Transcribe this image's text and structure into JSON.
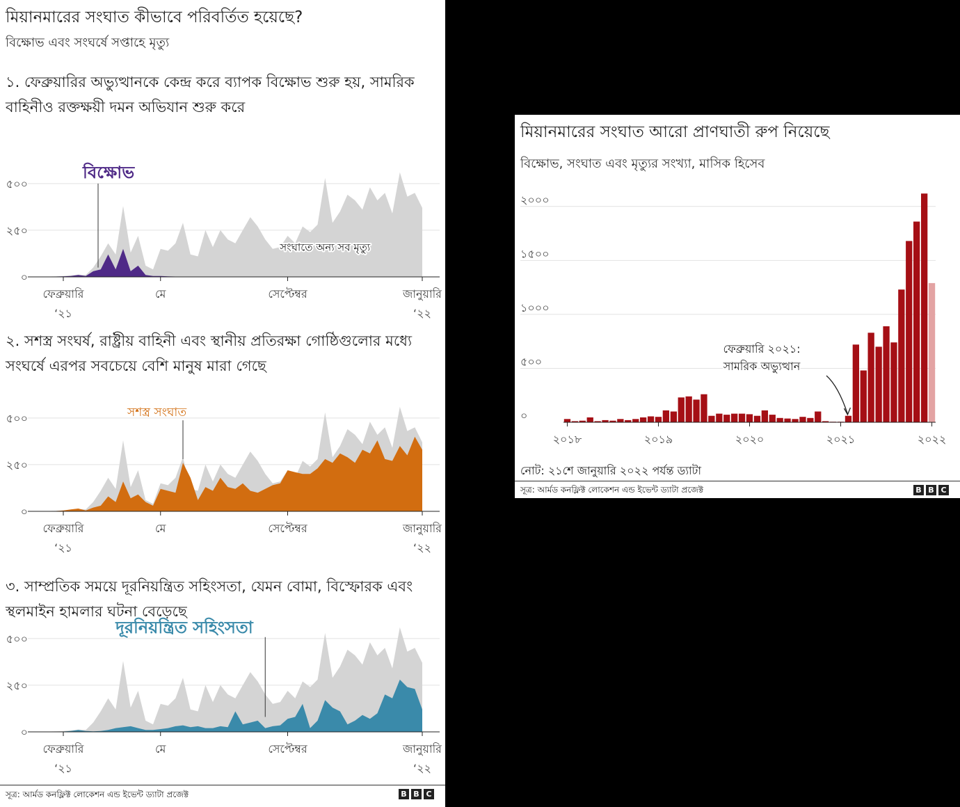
{
  "left": {
    "title": "মিয়ানমারের সংঘাত কীভাবে পরিবর্তিত হয়েছে?",
    "subtitle": "বিক্ষোভ এবং সংঘর্ষে সপ্তাহে মৃত্যু",
    "source": "সূত্র: আর্মড কনফ্লিক্ট লোকেশন এন্ড ইভেন্ট ড্যাটা প্রজেক্ট",
    "bbc": [
      "B",
      "B",
      "C"
    ]
  },
  "right": {
    "title": "মিয়ানমারের সংঘাত আরো প্রাণঘাতী রুপ নিয়েছে",
    "subtitle": "বিক্ষোভ, সংঘাত এবং মৃত্যুর সংখ্যা, মাসিক হিসেব",
    "note": "নোট: ২১শে জানুয়ারি ২০২২ পর্যন্ত ড্যাটা",
    "source": "সূত্র: আর্মড কনফ্লিক্ট লোকেশন এন্ড ইভেন্ট ড্যাটা প্রজেক্ট",
    "bbc": [
      "B",
      "B",
      "C"
    ]
  },
  "colors": {
    "total": "#d4d4d4",
    "protest": "#4f2a87",
    "armed": "#d26d10",
    "remote": "#3a8aaa",
    "bar": "#a50f15",
    "bar_partial": "#e3a3a3",
    "grid": "#e2e2e2",
    "axis": "#222222"
  },
  "chart_data": [
    {
      "type": "area",
      "section_title": "১. ফেব্রুয়ারির অভ্যুত্থানকে কেন্দ্র করে ব্যাপক বিক্ষোভ শুরু হয়, সামরিক বাহিনীও রক্তক্ষয়ী দমন অভিযান শুরু করে",
      "y_ticks": [
        0,
        250,
        500
      ],
      "y_tick_labels": [
        "০",
        "২৫০",
        "৫০০"
      ],
      "ylim": [
        0,
        600
      ],
      "x_ticks": [
        {
          "week": 4,
          "label": "ফেব্রুয়ারি",
          "sub": "‘২১"
        },
        {
          "week": 17,
          "label": "মে",
          "sub": ""
        },
        {
          "week": 34,
          "label": "সেপ্টেম্বর",
          "sub": ""
        },
        {
          "week": 52,
          "label": "জানুয়ারি",
          "sub": "‘২২"
        }
      ],
      "weeks": 53,
      "series": [
        {
          "name": "সংঘাতে অন্য সব মৃত্যু",
          "role": "total",
          "values": [
            0,
            0,
            2,
            3,
            5,
            8,
            12,
            10,
            50,
            110,
            180,
            120,
            380,
            130,
            220,
            60,
            40,
            150,
            140,
            180,
            290,
            120,
            110,
            250,
            160,
            250,
            200,
            180,
            250,
            320,
            270,
            200,
            150,
            160,
            220,
            180,
            270,
            240,
            280,
            530,
            290,
            350,
            440,
            410,
            360,
            480,
            410,
            450,
            340,
            560,
            430,
            450,
            370
          ]
        },
        {
          "name": "বিক্ষোভ",
          "role": "overlay",
          "color_key": "protest",
          "values": [
            0,
            0,
            0,
            2,
            3,
            5,
            10,
            5,
            30,
            40,
            120,
            40,
            150,
            30,
            60,
            10,
            5,
            5,
            3,
            2,
            2,
            1,
            1,
            1,
            0,
            0,
            0,
            0,
            0,
            0,
            0,
            0,
            0,
            0,
            0,
            0,
            0,
            0,
            0,
            0,
            0,
            0,
            0,
            0,
            0,
            0,
            0,
            0,
            0,
            0,
            0,
            0,
            0
          ]
        }
      ],
      "annotations": [
        {
          "text": "বিক্ষোভ",
          "week": 8,
          "y": 530,
          "color_key": "protest",
          "bold": true,
          "size": 24
        },
        {
          "text": "সংঘাতে অন্য সব মৃত্যু",
          "week": 39,
          "y": 140,
          "color_key": "axis",
          "halo": true,
          "size": 15
        }
      ]
    },
    {
      "type": "area",
      "section_title": "২. সশস্ত্র সংঘর্ষ, রাষ্ট্রীয় বাহিনী এবং স্থানীয় প্রতিরক্ষা গোষ্ঠিগুলোর মধ্যে সংঘর্ষে এরপর সবচেয়ে বেশি মানুষ মারা গেছে",
      "y_ticks": [
        0,
        250,
        500
      ],
      "y_tick_labels": [
        "০",
        "২৫০",
        "৫০০"
      ],
      "ylim": [
        0,
        600
      ],
      "x_ticks": [
        {
          "week": 4,
          "label": "ফেব্রুয়ারি",
          "sub": "‘২১"
        },
        {
          "week": 17,
          "label": "মে",
          "sub": ""
        },
        {
          "week": 34,
          "label": "সেপ্টেম্বর",
          "sub": ""
        },
        {
          "week": 52,
          "label": "জানুয়ারি",
          "sub": "‘২২"
        }
      ],
      "weeks": 53,
      "series": [
        {
          "name": "",
          "role": "total",
          "values": [
            0,
            0,
            2,
            3,
            5,
            8,
            12,
            10,
            50,
            110,
            180,
            120,
            380,
            130,
            220,
            60,
            40,
            150,
            140,
            180,
            290,
            120,
            110,
            250,
            160,
            250,
            200,
            180,
            250,
            320,
            270,
            200,
            150,
            160,
            220,
            180,
            270,
            240,
            280,
            530,
            290,
            350,
            440,
            410,
            360,
            480,
            410,
            450,
            340,
            560,
            430,
            450,
            370
          ]
        },
        {
          "name": "সশস্ত্র সংঘাত",
          "role": "overlay",
          "color_key": "armed",
          "values": [
            0,
            0,
            1,
            2,
            5,
            10,
            15,
            5,
            20,
            30,
            80,
            50,
            160,
            70,
            90,
            50,
            30,
            120,
            110,
            100,
            260,
            180,
            60,
            130,
            110,
            180,
            130,
            120,
            150,
            110,
            100,
            120,
            140,
            150,
            220,
            210,
            200,
            200,
            230,
            280,
            260,
            310,
            290,
            260,
            330,
            310,
            380,
            280,
            270,
            350,
            300,
            400,
            330
          ]
        }
      ],
      "annotations": [
        {
          "text": "সশস্ত্র সংঘাত",
          "week": 20,
          "y": 510,
          "color_key": "armed",
          "bold": false,
          "size": 17,
          "leader_to": 280
        }
      ]
    },
    {
      "type": "area",
      "section_title": "৩. সাম্প্রতিক সময়ে দূরনিয়ন্ত্রিত সহিংসতা, যেমন বোমা, বিস্ফোরক এবং স্থলমাইন হামলার ঘটনা বেড়েছে",
      "y_ticks": [
        0,
        250,
        500
      ],
      "y_tick_labels": [
        "০",
        "২৫০",
        "৫০০"
      ],
      "ylim": [
        0,
        600
      ],
      "x_ticks": [
        {
          "week": 4,
          "label": "ফেব্রুয়ারি",
          "sub": "‘২১"
        },
        {
          "week": 17,
          "label": "মে",
          "sub": ""
        },
        {
          "week": 34,
          "label": "সেপ্টেম্বর",
          "sub": ""
        },
        {
          "week": 52,
          "label": "জানুয়ারি",
          "sub": "‘২২"
        }
      ],
      "weeks": 53,
      "series": [
        {
          "name": "",
          "role": "total",
          "values": [
            0,
            0,
            2,
            3,
            5,
            8,
            12,
            10,
            50,
            110,
            180,
            120,
            380,
            130,
            220,
            60,
            40,
            150,
            140,
            180,
            290,
            120,
            110,
            250,
            160,
            250,
            200,
            180,
            250,
            320,
            270,
            200,
            150,
            160,
            220,
            180,
            270,
            240,
            280,
            530,
            290,
            350,
            440,
            410,
            360,
            480,
            410,
            450,
            340,
            560,
            430,
            450,
            370
          ]
        },
        {
          "name": "দূরনিয়ন্ত্রিত সহিংসতা",
          "role": "overlay",
          "color_key": "remote",
          "values": [
            0,
            0,
            0,
            0,
            2,
            5,
            10,
            5,
            3,
            5,
            10,
            20,
            25,
            30,
            20,
            10,
            10,
            15,
            20,
            30,
            35,
            25,
            30,
            20,
            20,
            30,
            25,
            110,
            40,
            50,
            60,
            20,
            30,
            35,
            70,
            80,
            150,
            20,
            60,
            170,
            130,
            110,
            40,
            60,
            90,
            70,
            100,
            200,
            180,
            280,
            240,
            230,
            120
          ]
        }
      ],
      "annotations": [
        {
          "text": "দূরনিয়ন্ত্রিত সহিংসতা",
          "week": 24,
          "y": 530,
          "color_key": "remote",
          "bold": true,
          "size": 24,
          "leader_to": 80,
          "leader_week": 31
        }
      ]
    },
    {
      "type": "bar",
      "y_ticks": [
        0,
        500,
        1000,
        1500,
        2000
      ],
      "y_tick_labels": [
        "০",
        "৫০০",
        "১০০০",
        "১৫০০",
        "২০০০"
      ],
      "ylim": [
        0,
        2250
      ],
      "x_ticks": [
        {
          "month": 0,
          "label": "২০১৮"
        },
        {
          "month": 12,
          "label": "২০১৯"
        },
        {
          "month": 24,
          "label": "২০২০"
        },
        {
          "month": 36,
          "label": "২০২১"
        },
        {
          "month": 48,
          "label": "২০২২"
        }
      ],
      "values": [
        30,
        10,
        15,
        45,
        10,
        20,
        15,
        30,
        20,
        30,
        45,
        55,
        50,
        110,
        100,
        230,
        240,
        210,
        260,
        60,
        80,
        70,
        80,
        80,
        75,
        60,
        110,
        70,
        40,
        35,
        30,
        50,
        40,
        100,
        10,
        5,
        5,
        60,
        720,
        480,
        830,
        700,
        890,
        740,
        1230,
        1680,
        1860,
        2120,
        1290
      ],
      "partial_last": true,
      "annotation": {
        "lines": [
          "ফেব্রুয়ারি ২০২১:",
          "সামরিক অভ্যুত্থান"
        ],
        "month": 37
      }
    }
  ]
}
